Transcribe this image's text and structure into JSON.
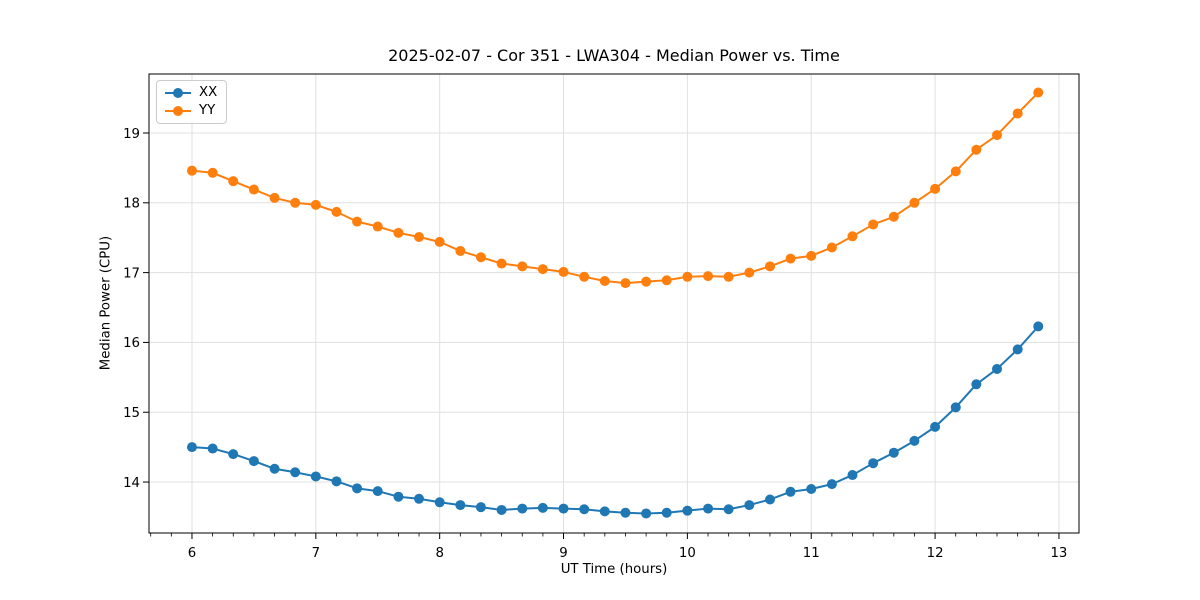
{
  "chart_data": {
    "type": "line",
    "title": "2025-02-07 - Cor 351 - LWA304 - Median Power vs. Time",
    "xlabel": "UT Time (hours)",
    "ylabel": "Median Power (CPU)",
    "xlim": [
      5.653,
      13.162
    ],
    "ylim": [
      13.27,
      19.845
    ],
    "x_ticks": [
      6,
      7,
      8,
      9,
      10,
      11,
      12,
      13
    ],
    "y_ticks": [
      14,
      15,
      16,
      17,
      18,
      19
    ],
    "x_minor_step": 0.166667,
    "grid": true,
    "legend_position": "upper left",
    "marker": "circle",
    "x": [
      6.0,
      6.167,
      6.333,
      6.5,
      6.667,
      6.833,
      7.0,
      7.167,
      7.333,
      7.5,
      7.667,
      7.833,
      8.0,
      8.167,
      8.333,
      8.5,
      8.667,
      8.833,
      9.0,
      9.167,
      9.333,
      9.5,
      9.667,
      9.833,
      10.0,
      10.167,
      10.333,
      10.5,
      10.667,
      10.833,
      11.0,
      11.167,
      11.333,
      11.5,
      11.667,
      11.833,
      12.0,
      12.167,
      12.333,
      12.5,
      12.667,
      12.833
    ],
    "series": [
      {
        "name": "XX",
        "color": "#1f77b4",
        "values": [
          14.5,
          14.48,
          14.4,
          14.3,
          14.19,
          14.14,
          14.08,
          14.01,
          13.91,
          13.87,
          13.79,
          13.76,
          13.71,
          13.67,
          13.64,
          13.6,
          13.62,
          13.63,
          13.62,
          13.61,
          13.58,
          13.56,
          13.55,
          13.56,
          13.59,
          13.62,
          13.61,
          13.67,
          13.75,
          13.86,
          13.9,
          13.97,
          14.1,
          14.27,
          14.42,
          14.59,
          14.79,
          15.07,
          15.4,
          15.62,
          15.9,
          16.23
        ]
      },
      {
        "name": "YY",
        "color": "#ff7f0e",
        "values": [
          18.46,
          18.43,
          18.31,
          18.19,
          18.07,
          18.0,
          17.97,
          17.87,
          17.73,
          17.66,
          17.57,
          17.51,
          17.44,
          17.31,
          17.22,
          17.13,
          17.09,
          17.05,
          17.01,
          16.94,
          16.88,
          16.85,
          16.87,
          16.89,
          16.94,
          16.95,
          16.94,
          17.0,
          17.09,
          17.2,
          17.24,
          17.36,
          17.52,
          17.69,
          17.8,
          18.0,
          18.2,
          18.45,
          18.76,
          18.97,
          19.28,
          19.58
        ]
      }
    ],
    "colors": {
      "spine": "#000000",
      "grid": "#e0e0e0",
      "tick": "#000000",
      "background": "#ffffff"
    }
  }
}
